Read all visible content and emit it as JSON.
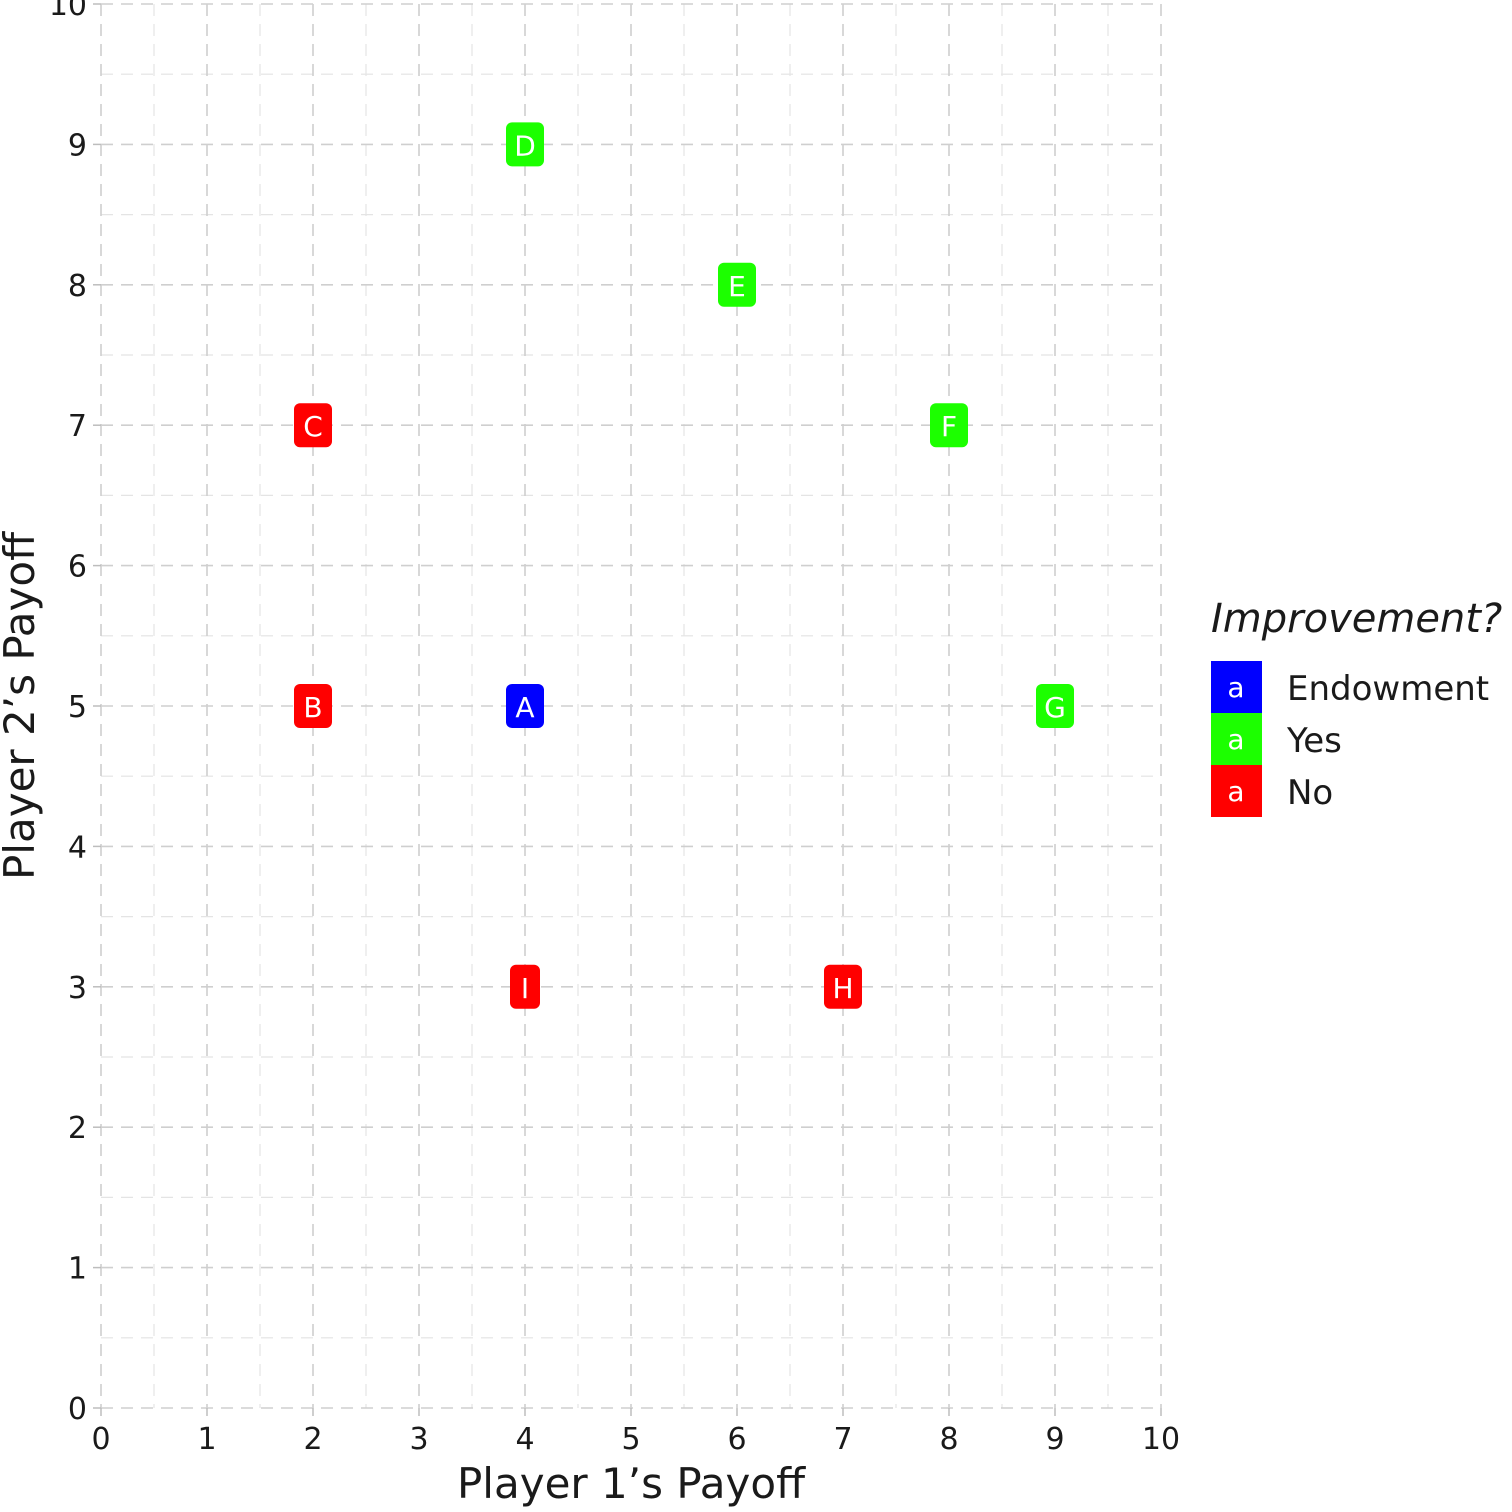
{
  "chart_data": {
    "type": "scatter",
    "xlabel": "Player 1’s Payoff",
    "ylabel": "Player 2’s Payoff",
    "xlim": [
      0,
      10
    ],
    "ylim": [
      0,
      10
    ],
    "x_ticks": [
      "0",
      "1",
      "2",
      "3",
      "4",
      "5",
      "6",
      "7",
      "8",
      "9",
      "10"
    ],
    "y_ticks": [
      "0",
      "1",
      "2",
      "3",
      "4",
      "5",
      "6",
      "7",
      "8",
      "9",
      "10"
    ],
    "grid": true,
    "grid_style": "dashed",
    "legend": {
      "title": "Improvement?",
      "position": "right",
      "key_glyph": "a",
      "entries": [
        {
          "label": "Endowment",
          "color": "#0000FF"
        },
        {
          "label": "Yes",
          "color": "#1CFF00"
        },
        {
          "label": "No",
          "color": "#FF0000"
        }
      ]
    },
    "points": [
      {
        "label": "A",
        "x": 4,
        "y": 5,
        "group": "Endowment"
      },
      {
        "label": "B",
        "x": 2,
        "y": 5,
        "group": "No"
      },
      {
        "label": "C",
        "x": 2,
        "y": 7,
        "group": "No"
      },
      {
        "label": "D",
        "x": 4,
        "y": 9,
        "group": "Yes"
      },
      {
        "label": "E",
        "x": 6,
        "y": 8,
        "group": "Yes"
      },
      {
        "label": "F",
        "x": 8,
        "y": 7,
        "group": "Yes"
      },
      {
        "label": "G",
        "x": 9,
        "y": 5,
        "group": "Yes"
      },
      {
        "label": "H",
        "x": 7,
        "y": 3,
        "group": "No"
      },
      {
        "label": "I",
        "x": 4,
        "y": 3,
        "group": "No"
      }
    ]
  }
}
